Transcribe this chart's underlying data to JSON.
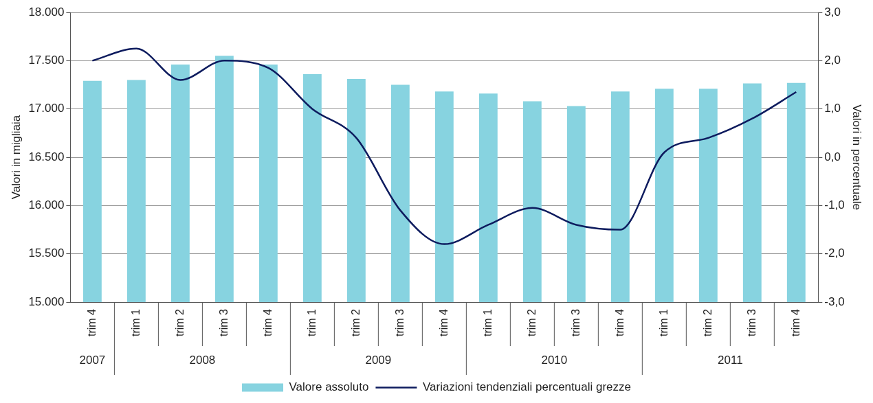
{
  "chart_data": {
    "type": "bar",
    "categories": [
      "trim 4",
      "trim 1",
      "trim 2",
      "trim 3",
      "trim 4",
      "trim 1",
      "trim 2",
      "trim 3",
      "trim 4",
      "trim 1",
      "trim 2",
      "trim 3",
      "trim 4",
      "trim 1",
      "trim 2",
      "trim 3",
      "trim 4"
    ],
    "series": [
      {
        "name": "Valore assoluto",
        "color": "#87d3e0",
        "values": [
          17290,
          17300,
          17460,
          17550,
          17460,
          17360,
          17310,
          17250,
          17180,
          17160,
          17080,
          17030,
          17180,
          17210,
          17210,
          17265,
          17270
        ]
      },
      {
        "name": "Variazioni tendenziali percentuali grezze",
        "type": "line",
        "axis": "y2",
        "color": "#0d1b5e",
        "values": [
          2.0,
          2.25,
          1.6,
          2.0,
          1.85,
          1.0,
          0.4,
          -1.1,
          -1.8,
          -1.4,
          -1.05,
          -1.4,
          -1.5,
          0.1,
          0.4,
          0.8,
          1.35
        ]
      }
    ],
    "ylabel": "Valori in migliaia",
    "y2label": "Valori in percentuale",
    "ylim": [
      15000,
      18000
    ],
    "yticks": [
      {
        "value": 15000,
        "label": "15.000"
      },
      {
        "value": 15500,
        "label": "15.500"
      },
      {
        "value": 16000,
        "label": "16.000"
      },
      {
        "value": 16500,
        "label": "16.500"
      },
      {
        "value": 17000,
        "label": "17.000"
      },
      {
        "value": 17500,
        "label": "17.500"
      },
      {
        "value": 18000,
        "label": "18.000"
      }
    ],
    "y2lim": [
      -3,
      3
    ],
    "y2ticks": [
      {
        "value": -3,
        "label": "-3,0"
      },
      {
        "value": -2,
        "label": "-2,0"
      },
      {
        "value": -1,
        "label": "-1,0"
      },
      {
        "value": 0,
        "label": "0,0"
      },
      {
        "value": 1,
        "label": "1,0"
      },
      {
        "value": 2,
        "label": "2,0"
      },
      {
        "value": 3,
        "label": "3,0"
      }
    ],
    "annotations": [
      "2007",
      "2008",
      "2009",
      "2010",
      "2011"
    ],
    "grid": "y",
    "legend": "bottom",
    "marker": "none"
  }
}
